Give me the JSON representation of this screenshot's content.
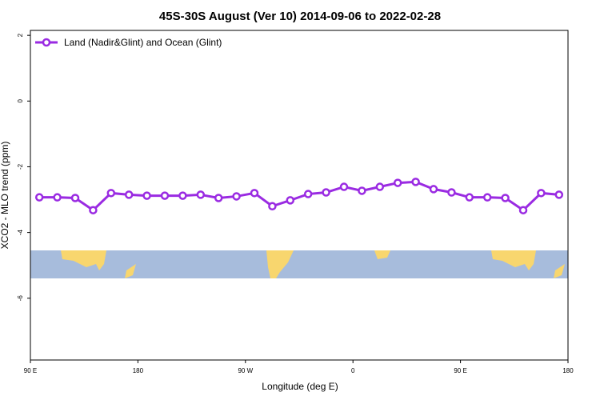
{
  "chart_data": {
    "type": "line",
    "title": "45S-30S August (Ver 10)   2014-09-06 to 2022-02-28",
    "x_label": "Longitude (deg E)",
    "y_label": "XCO2 - MLO trend (ppm)",
    "x": [
      97.5,
      112.5,
      127.5,
      142.5,
      157.5,
      172.5,
      187.5,
      202.5,
      217.5,
      232.5,
      247.5,
      262.5,
      277.5,
      292.5,
      307.5,
      322.5,
      337.5,
      352.5,
      367.5,
      382.5,
      397.5,
      412.5,
      427.5,
      442.5,
      457.5,
      472.5,
      487.5,
      502.5,
      517.5,
      532.5
    ],
    "series": [
      {
        "name": "Land (Nadir&Glint) and Ocean (Glint)",
        "color": "#9a2be2",
        "values": [
          -2.93,
          -2.93,
          -2.95,
          -3.32,
          -2.8,
          -2.85,
          -2.88,
          -2.88,
          -2.88,
          -2.85,
          -2.95,
          -2.9,
          -2.8,
          -3.2,
          -3.02,
          -2.83,
          -2.78,
          -2.61,
          -2.73,
          -2.61,
          -2.49,
          -2.46,
          -2.68,
          -2.78,
          -2.93,
          -2.93,
          -2.95,
          -3.32,
          -2.8,
          -2.85
        ]
      }
    ],
    "xlim": [
      90,
      540
    ],
    "xticks": [
      {
        "value": 90,
        "label": "90 E"
      },
      {
        "value": 180,
        "label": "180"
      },
      {
        "value": 270,
        "label": "90 W"
      },
      {
        "value": 360,
        "label": "0"
      },
      {
        "value": 450,
        "label": "90 E"
      },
      {
        "value": 540,
        "label": "180"
      }
    ],
    "ylim": [
      -7.88,
      2.15
    ],
    "yticks": [
      -6,
      -4,
      -2,
      0,
      2
    ],
    "legend": "top-left"
  }
}
